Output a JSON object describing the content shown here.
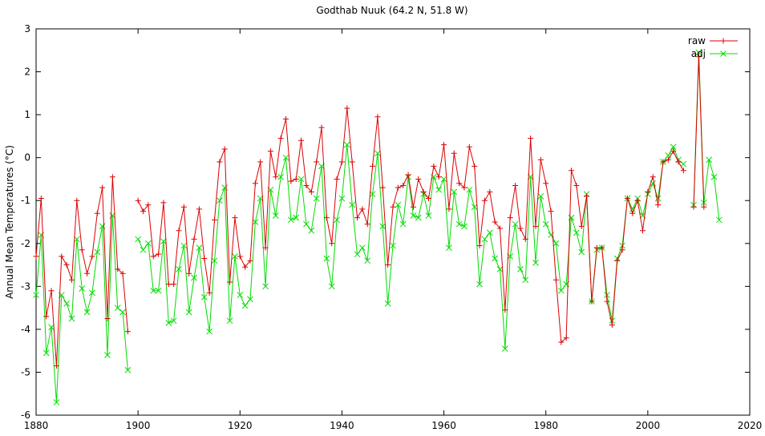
{
  "chart_data": {
    "type": "line",
    "title": "Godthab Nuuk (64.2 N, 51.8 W)",
    "xlabel": "",
    "ylabel": "Annual Mean Temperatures (°C)",
    "xlim": [
      1880,
      2020
    ],
    "ylim": [
      -6,
      3
    ],
    "xticks": [
      1880,
      1900,
      1920,
      1940,
      1960,
      1980,
      2000,
      2020
    ],
    "yticks": [
      3,
      2,
      1,
      0,
      -1,
      -2,
      -3,
      -4,
      -5,
      -6
    ],
    "grid": false,
    "legend": "top-right",
    "series": [
      {
        "name": "raw",
        "color": "#dd0000",
        "marker": "plus",
        "points": [
          [
            1880,
            -2.3
          ],
          [
            1881,
            -0.95
          ],
          [
            1882,
            -3.7
          ],
          [
            1883,
            -3.1
          ],
          [
            1884,
            -4.85
          ],
          [
            1885,
            -2.3
          ],
          [
            1886,
            -2.5
          ],
          [
            1887,
            -2.85
          ],
          [
            1888,
            -1.0
          ],
          [
            1889,
            -2.15
          ],
          [
            1890,
            -2.7
          ],
          [
            1891,
            -2.3
          ],
          [
            1892,
            -1.3
          ],
          [
            1893,
            -0.7
          ],
          [
            1894,
            -3.75
          ],
          [
            1895,
            -0.45
          ],
          [
            1896,
            -2.6
          ],
          [
            1897,
            -2.7
          ],
          [
            1898,
            -4.05
          ],
          [
            1899,
            null
          ],
          [
            1900,
            -1.0
          ],
          [
            1901,
            -1.25
          ],
          [
            1902,
            -1.1
          ],
          [
            1903,
            -2.3
          ],
          [
            1904,
            -2.25
          ],
          [
            1905,
            -1.05
          ],
          [
            1906,
            -2.95
          ],
          [
            1907,
            -2.95
          ],
          [
            1908,
            -1.7
          ],
          [
            1909,
            -1.15
          ],
          [
            1910,
            -2.7
          ],
          [
            1911,
            -1.9
          ],
          [
            1912,
            -1.2
          ],
          [
            1913,
            -2.35
          ],
          [
            1914,
            -3.15
          ],
          [
            1915,
            -1.45
          ],
          [
            1916,
            -0.1
          ],
          [
            1917,
            0.2
          ],
          [
            1918,
            -2.9
          ],
          [
            1919,
            -1.4
          ],
          [
            1920,
            -2.3
          ],
          [
            1921,
            -2.55
          ],
          [
            1922,
            -2.4
          ],
          [
            1923,
            -0.6
          ],
          [
            1924,
            -0.1
          ],
          [
            1925,
            -2.1
          ],
          [
            1926,
            0.15
          ],
          [
            1927,
            -0.45
          ],
          [
            1928,
            0.45
          ],
          [
            1929,
            0.9
          ],
          [
            1930,
            -0.55
          ],
          [
            1931,
            -0.5
          ],
          [
            1932,
            0.4
          ],
          [
            1933,
            -0.65
          ],
          [
            1934,
            -0.8
          ],
          [
            1935,
            -0.1
          ],
          [
            1936,
            0.7
          ],
          [
            1937,
            -1.4
          ],
          [
            1938,
            -2.0
          ],
          [
            1939,
            -0.5
          ],
          [
            1940,
            -0.1
          ],
          [
            1941,
            1.15
          ],
          [
            1942,
            -0.1
          ],
          [
            1943,
            -1.4
          ],
          [
            1944,
            -1.2
          ],
          [
            1945,
            -1.55
          ],
          [
            1946,
            -0.2
          ],
          [
            1947,
            0.95
          ],
          [
            1948,
            -0.7
          ],
          [
            1949,
            -2.5
          ],
          [
            1950,
            -1.15
          ],
          [
            1951,
            -0.7
          ],
          [
            1952,
            -0.65
          ],
          [
            1953,
            -0.4
          ],
          [
            1954,
            -1.15
          ],
          [
            1955,
            -0.5
          ],
          [
            1956,
            -0.8
          ],
          [
            1957,
            -0.95
          ],
          [
            1958,
            -0.2
          ],
          [
            1959,
            -0.45
          ],
          [
            1960,
            0.3
          ],
          [
            1961,
            -1.2
          ],
          [
            1962,
            0.1
          ],
          [
            1963,
            -0.6
          ],
          [
            1964,
            -0.7
          ],
          [
            1965,
            0.25
          ],
          [
            1966,
            -0.2
          ],
          [
            1967,
            -2.05
          ],
          [
            1968,
            -1.0
          ],
          [
            1969,
            -0.8
          ],
          [
            1970,
            -1.5
          ],
          [
            1971,
            -1.65
          ],
          [
            1972,
            -3.55
          ],
          [
            1973,
            -1.4
          ],
          [
            1974,
            -0.65
          ],
          [
            1975,
            -1.65
          ],
          [
            1976,
            -1.9
          ],
          [
            1977,
            0.45
          ],
          [
            1978,
            -1.6
          ],
          [
            1979,
            -0.05
          ],
          [
            1980,
            -0.6
          ],
          [
            1981,
            -1.25
          ],
          [
            1982,
            -2.85
          ],
          [
            1983,
            -4.3
          ],
          [
            1984,
            -4.2
          ],
          [
            1985,
            -0.3
          ],
          [
            1986,
            -0.65
          ],
          [
            1987,
            -1.6
          ],
          [
            1988,
            -0.9
          ],
          [
            1989,
            -3.35
          ],
          [
            1990,
            -2.1
          ],
          [
            1991,
            -2.1
          ],
          [
            1992,
            -3.35
          ],
          [
            1993,
            -3.9
          ],
          [
            1994,
            -2.4
          ],
          [
            1995,
            -2.15
          ],
          [
            1996,
            -0.95
          ],
          [
            1997,
            -1.3
          ],
          [
            1998,
            -1.0
          ],
          [
            1999,
            -1.7
          ],
          [
            2000,
            -0.8
          ],
          [
            2001,
            -0.45
          ],
          [
            2002,
            -1.1
          ],
          [
            2003,
            -0.1
          ],
          [
            2004,
            -0.05
          ],
          [
            2005,
            0.15
          ],
          [
            2006,
            -0.1
          ],
          [
            2007,
            -0.3
          ],
          [
            2008,
            null
          ],
          [
            2009,
            -1.15
          ],
          [
            2010,
            2.35
          ],
          [
            2011,
            -1.15
          ],
          [
            2012,
            null
          ],
          [
            2013,
            null
          ],
          [
            2014,
            null
          ]
        ]
      },
      {
        "name": "adj",
        "color": "#00dd00",
        "marker": "cross",
        "points": [
          [
            1880,
            -3.2
          ],
          [
            1881,
            -1.8
          ],
          [
            1882,
            -4.55
          ],
          [
            1883,
            -3.95
          ],
          [
            1884,
            -5.7
          ],
          [
            1885,
            -3.2
          ],
          [
            1886,
            -3.4
          ],
          [
            1887,
            -3.75
          ],
          [
            1888,
            -1.9
          ],
          [
            1889,
            -3.05
          ],
          [
            1890,
            -3.6
          ],
          [
            1891,
            -3.15
          ],
          [
            1892,
            -2.2
          ],
          [
            1893,
            -1.6
          ],
          [
            1894,
            -4.6
          ],
          [
            1895,
            -1.35
          ],
          [
            1896,
            -3.5
          ],
          [
            1897,
            -3.6
          ],
          [
            1898,
            -4.95
          ],
          [
            1899,
            null
          ],
          [
            1900,
            -1.9
          ],
          [
            1901,
            -2.15
          ],
          [
            1902,
            -2.0
          ],
          [
            1903,
            -3.1
          ],
          [
            1904,
            -3.1
          ],
          [
            1905,
            -1.95
          ],
          [
            1906,
            -3.85
          ],
          [
            1907,
            -3.8
          ],
          [
            1908,
            -2.6
          ],
          [
            1909,
            -2.05
          ],
          [
            1910,
            -3.6
          ],
          [
            1911,
            -2.8
          ],
          [
            1912,
            -2.1
          ],
          [
            1913,
            -3.25
          ],
          [
            1914,
            -4.05
          ],
          [
            1915,
            -2.4
          ],
          [
            1916,
            -1.0
          ],
          [
            1917,
            -0.7
          ],
          [
            1918,
            -3.8
          ],
          [
            1919,
            -2.3
          ],
          [
            1920,
            -3.2
          ],
          [
            1921,
            -3.45
          ],
          [
            1922,
            -3.3
          ],
          [
            1923,
            -1.5
          ],
          [
            1924,
            -0.95
          ],
          [
            1925,
            -3.0
          ],
          [
            1926,
            -0.75
          ],
          [
            1927,
            -1.35
          ],
          [
            1928,
            -0.45
          ],
          [
            1929,
            0.0
          ],
          [
            1930,
            -1.45
          ],
          [
            1931,
            -1.4
          ],
          [
            1932,
            -0.5
          ],
          [
            1933,
            -1.55
          ],
          [
            1934,
            -1.7
          ],
          [
            1935,
            -0.95
          ],
          [
            1936,
            -0.2
          ],
          [
            1937,
            -2.35
          ],
          [
            1938,
            -3.0
          ],
          [
            1939,
            -1.45
          ],
          [
            1940,
            -0.95
          ],
          [
            1941,
            0.3
          ],
          [
            1942,
            -1.1
          ],
          [
            1943,
            -2.25
          ],
          [
            1944,
            -2.1
          ],
          [
            1945,
            -2.4
          ],
          [
            1946,
            -0.85
          ],
          [
            1947,
            0.1
          ],
          [
            1948,
            -1.6
          ],
          [
            1949,
            -3.4
          ],
          [
            1950,
            -2.05
          ],
          [
            1951,
            -1.1
          ],
          [
            1952,
            -1.55
          ],
          [
            1953,
            -0.45
          ],
          [
            1954,
            -1.35
          ],
          [
            1955,
            -1.4
          ],
          [
            1956,
            -0.85
          ],
          [
            1957,
            -1.35
          ],
          [
            1958,
            -0.45
          ],
          [
            1959,
            -0.75
          ],
          [
            1960,
            -0.5
          ],
          [
            1961,
            -2.1
          ],
          [
            1962,
            -0.8
          ],
          [
            1963,
            -1.55
          ],
          [
            1964,
            -1.6
          ],
          [
            1965,
            -0.75
          ],
          [
            1966,
            -1.15
          ],
          [
            1967,
            -2.95
          ],
          [
            1968,
            -1.9
          ],
          [
            1969,
            -1.75
          ],
          [
            1970,
            -2.35
          ],
          [
            1971,
            -2.6
          ],
          [
            1972,
            -4.45
          ],
          [
            1973,
            -2.3
          ],
          [
            1974,
            -1.55
          ],
          [
            1975,
            -2.6
          ],
          [
            1976,
            -2.85
          ],
          [
            1977,
            -0.45
          ],
          [
            1978,
            -2.45
          ],
          [
            1979,
            -0.9
          ],
          [
            1980,
            -1.55
          ],
          [
            1981,
            -1.8
          ],
          [
            1982,
            -2.0
          ],
          [
            1983,
            -3.1
          ],
          [
            1984,
            -2.95
          ],
          [
            1985,
            -1.4
          ],
          [
            1986,
            -1.75
          ],
          [
            1987,
            -2.2
          ],
          [
            1988,
            -0.85
          ],
          [
            1989,
            -3.35
          ],
          [
            1990,
            -2.15
          ],
          [
            1991,
            -2.1
          ],
          [
            1992,
            -3.2
          ],
          [
            1993,
            -3.8
          ],
          [
            1994,
            -2.35
          ],
          [
            1995,
            -2.05
          ],
          [
            1996,
            -0.95
          ],
          [
            1997,
            -1.2
          ],
          [
            1998,
            -0.95
          ],
          [
            1999,
            -1.35
          ],
          [
            2000,
            -0.85
          ],
          [
            2001,
            -0.6
          ],
          [
            2002,
            -0.95
          ],
          [
            2003,
            -0.1
          ],
          [
            2004,
            0.05
          ],
          [
            2005,
            0.25
          ],
          [
            2006,
            -0.05
          ],
          [
            2007,
            -0.15
          ],
          [
            2008,
            null
          ],
          [
            2009,
            -1.1
          ],
          [
            2010,
            2.45
          ],
          [
            2011,
            -1.05
          ],
          [
            2012,
            -0.05
          ],
          [
            2013,
            -0.45
          ],
          [
            2014,
            -1.45
          ]
        ]
      }
    ]
  }
}
